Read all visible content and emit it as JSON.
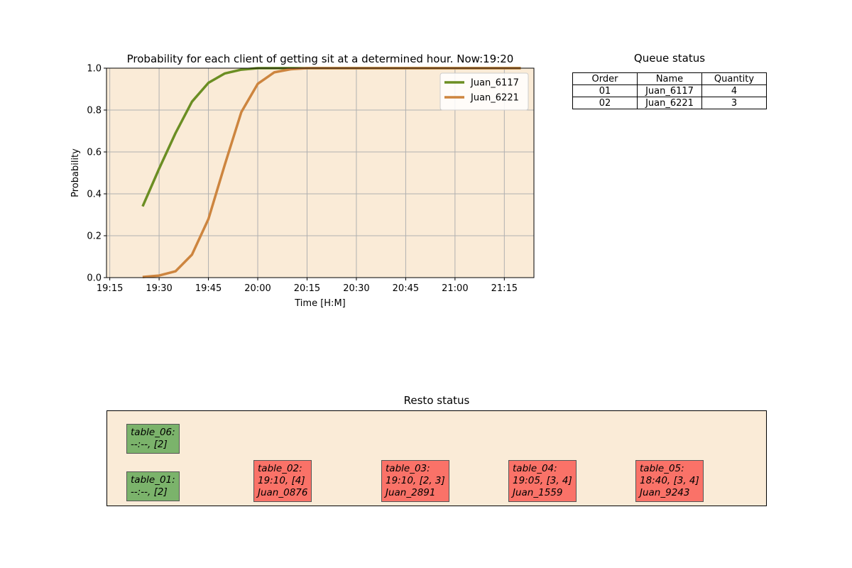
{
  "chart_data": {
    "type": "line",
    "title": "Probability for each client of getting sit at a determined hour. Now:19:20",
    "xlabel": "Time [H:M]",
    "ylabel": "Probability",
    "xlim": [
      "19:14",
      "21:24"
    ],
    "ylim": [
      0,
      1
    ],
    "x_ticks": [
      "19:15",
      "19:30",
      "19:45",
      "20:00",
      "20:15",
      "20:30",
      "20:45",
      "21:00",
      "21:15"
    ],
    "y_ticks": [
      "0.0",
      "0.2",
      "0.4",
      "0.6",
      "0.8",
      "1.0"
    ],
    "grid": true,
    "background": "#faebd7",
    "legend_position": "top-right",
    "x": [
      "19:25",
      "19:30",
      "19:35",
      "19:40",
      "19:45",
      "19:50",
      "19:55",
      "20:00",
      "20:05",
      "20:10",
      "20:15",
      "20:20",
      "20:25",
      "20:30",
      "20:35",
      "20:40",
      "20:45",
      "20:50",
      "20:55",
      "21:00",
      "21:05",
      "21:10",
      "21:15",
      "21:20"
    ],
    "series": [
      {
        "name": "Juan_6117",
        "color": "#6b8e23",
        "values": [
          0.34,
          0.52,
          0.69,
          0.84,
          0.93,
          0.975,
          0.993,
          1.0,
          1.0,
          1.0,
          1.0,
          1.0,
          1.0,
          1.0,
          1.0,
          1.0,
          1.0,
          1.0,
          1.0,
          1.0,
          1.0,
          1.0,
          1.0,
          1.0
        ]
      },
      {
        "name": "Juan_6221",
        "color": "#cd853f",
        "values": [
          0.003,
          0.01,
          0.03,
          0.11,
          0.28,
          0.54,
          0.79,
          0.925,
          0.98,
          0.995,
          1.0,
          1.0,
          1.0,
          1.0,
          1.0,
          1.0,
          1.0,
          1.0,
          1.0,
          1.0,
          1.0,
          1.0,
          1.0,
          1.0
        ]
      }
    ]
  },
  "queue": {
    "title": "Queue status",
    "headers": [
      "Order",
      "Name",
      "Quantity"
    ],
    "rows": [
      [
        "01",
        "Juan_6117",
        "4"
      ],
      [
        "02",
        "Juan_6221",
        "3"
      ]
    ]
  },
  "resto": {
    "title": "Resto status",
    "free_color": "#7bb36b",
    "busy_color": "#fa7268",
    "tables": [
      {
        "status": "free",
        "lines": [
          "table_06:",
          "--:--, [2]"
        ]
      },
      {
        "status": "free",
        "lines": [
          "table_01:",
          "--:--, [2]"
        ]
      },
      {
        "status": "busy",
        "lines": [
          "table_02:",
          "19:10, [4]",
          "Juan_0876"
        ]
      },
      {
        "status": "busy",
        "lines": [
          "table_03:",
          "19:10, [2, 3]",
          "Juan_2891"
        ]
      },
      {
        "status": "busy",
        "lines": [
          "table_04:",
          "19:05, [3, 4]",
          "Juan_1559"
        ]
      },
      {
        "status": "busy",
        "lines": [
          "table_05:",
          "18:40, [3, 4]",
          "Juan_9243"
        ]
      }
    ]
  }
}
